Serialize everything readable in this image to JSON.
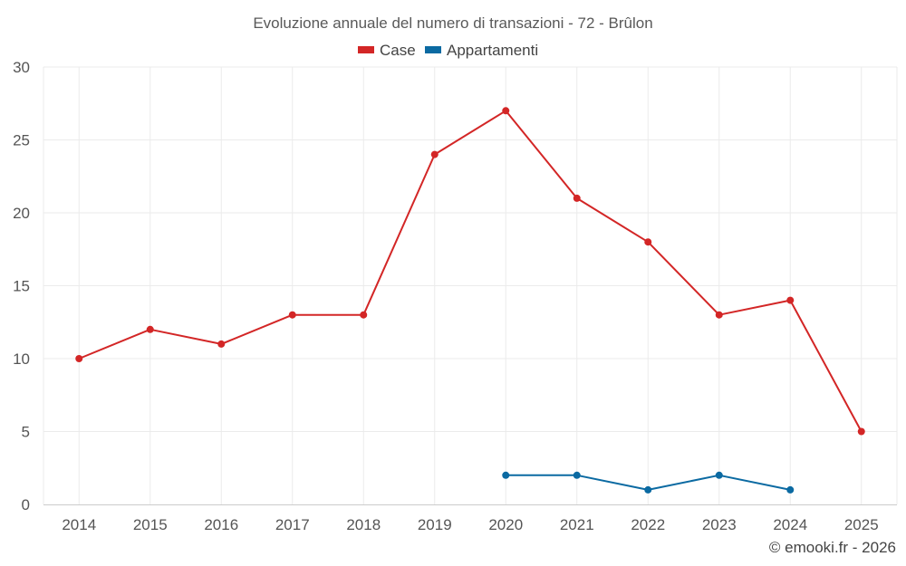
{
  "chart_data": {
    "type": "line",
    "title": "Evoluzione annuale del numero di transazioni - 72 - Brûlon",
    "x": [
      "2014",
      "2015",
      "2016",
      "2017",
      "2018",
      "2019",
      "2020",
      "2021",
      "2022",
      "2023",
      "2024",
      "2025"
    ],
    "series": [
      {
        "name": "Case",
        "color": "#d32626",
        "values": [
          10,
          12,
          11,
          13,
          13,
          24,
          27,
          21,
          18,
          13,
          14,
          5
        ]
      },
      {
        "name": "Appartamenti",
        "color": "#0b6aa2",
        "values": [
          null,
          null,
          null,
          null,
          null,
          null,
          2,
          2,
          1,
          2,
          1,
          null
        ]
      }
    ],
    "ylim": [
      0,
      30
    ],
    "yticks": [
      "0",
      "5",
      "10",
      "15",
      "20",
      "25",
      "30"
    ],
    "grid": true,
    "legend_position": "top-center",
    "xlabel": "",
    "ylabel": ""
  },
  "credit": "© emooki.fr - 2026"
}
